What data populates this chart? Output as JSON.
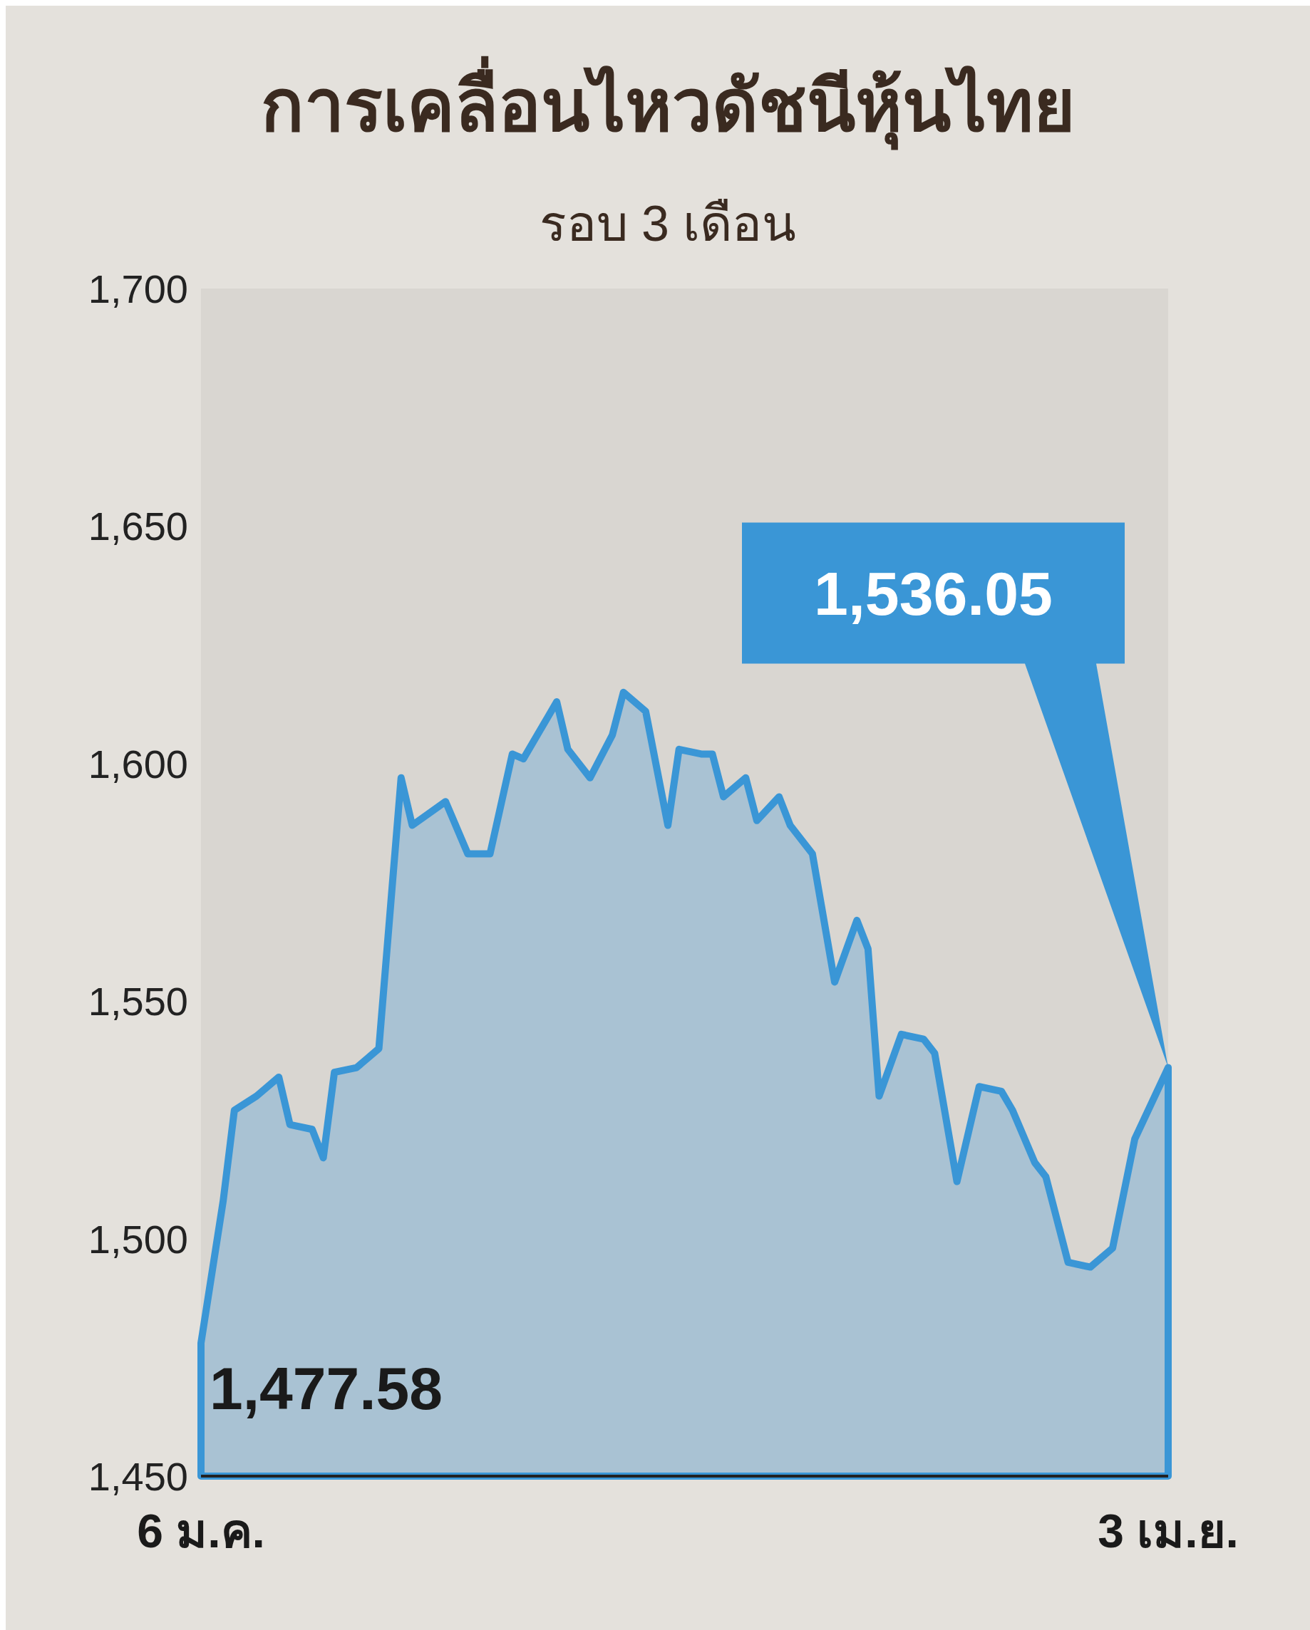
{
  "chart_data": {
    "type": "area",
    "title": "การเคลื่อนไหวดัชนีหุ้นไทย",
    "subtitle": "รอบ 3 เดือน",
    "x": [
      "--01-06",
      "--01-08",
      "--01-09",
      "--01-11",
      "--01-13",
      "--01-14",
      "--01-16",
      "--01-17",
      "--01-18",
      "--01-20",
      "--01-22",
      "--01-24",
      "--01-25",
      "--01-28",
      "--01-30",
      "--02-01",
      "--02-03",
      "--02-04",
      "--02-07",
      "--02-08",
      "--02-10",
      "--02-12",
      "--02-13",
      "--02-15",
      "--02-17",
      "--02-18",
      "--02-20",
      "--02-21",
      "--02-22",
      "--02-24",
      "--02-25",
      "--02-27",
      "--02-28",
      "--03-02",
      "--03-04",
      "--03-06",
      "--03-07",
      "--03-08",
      "--03-10",
      "--03-12",
      "--03-13",
      "--03-15",
      "--03-17",
      "--03-19",
      "--03-20",
      "--03-22",
      "--03-23",
      "--03-25",
      "--03-27",
      "--03-29",
      "--03-31",
      "--04-03"
    ],
    "series": [
      {
        "color": "#3a96d6",
        "values": [
          1478,
          1508,
          1527,
          1530,
          1534,
          1524,
          1523,
          1517,
          1535,
          1536,
          1540,
          1597,
          1587,
          1592,
          1581,
          1581,
          1602,
          1601,
          1613,
          1603,
          1597,
          1606,
          1615,
          1611,
          1587,
          1603,
          1602,
          1602,
          1593,
          1597,
          1588,
          1593,
          1587,
          1581,
          1554,
          1567,
          1561,
          1530,
          1543,
          1542,
          1539,
          1512,
          1532,
          1531,
          1527,
          1516,
          1513,
          1495,
          1494,
          1498,
          1521,
          1536
        ]
      }
    ],
    "xlim": [
      "--01-06",
      "--04-03"
    ],
    "xticks": [
      {
        "value": "--01-06",
        "label": "6 ม.ค."
      },
      {
        "value": "--04-03",
        "label": "3 เม.ย."
      }
    ],
    "ylim": [
      1450,
      1700
    ],
    "yticks": [
      {
        "value": 1450,
        "label": "1,450"
      },
      {
        "value": 1500,
        "label": "1,500"
      },
      {
        "value": 1550,
        "label": "1,550"
      },
      {
        "value": 1600,
        "label": "1,600"
      },
      {
        "value": 1650,
        "label": "1,650"
      },
      {
        "value": 1700,
        "label": "1,700"
      }
    ],
    "grid": false,
    "annotations": [
      {
        "text": "1,477.58",
        "x": "--01-06",
        "y": 1477.58
      },
      "1,536.05"
    ]
  }
}
